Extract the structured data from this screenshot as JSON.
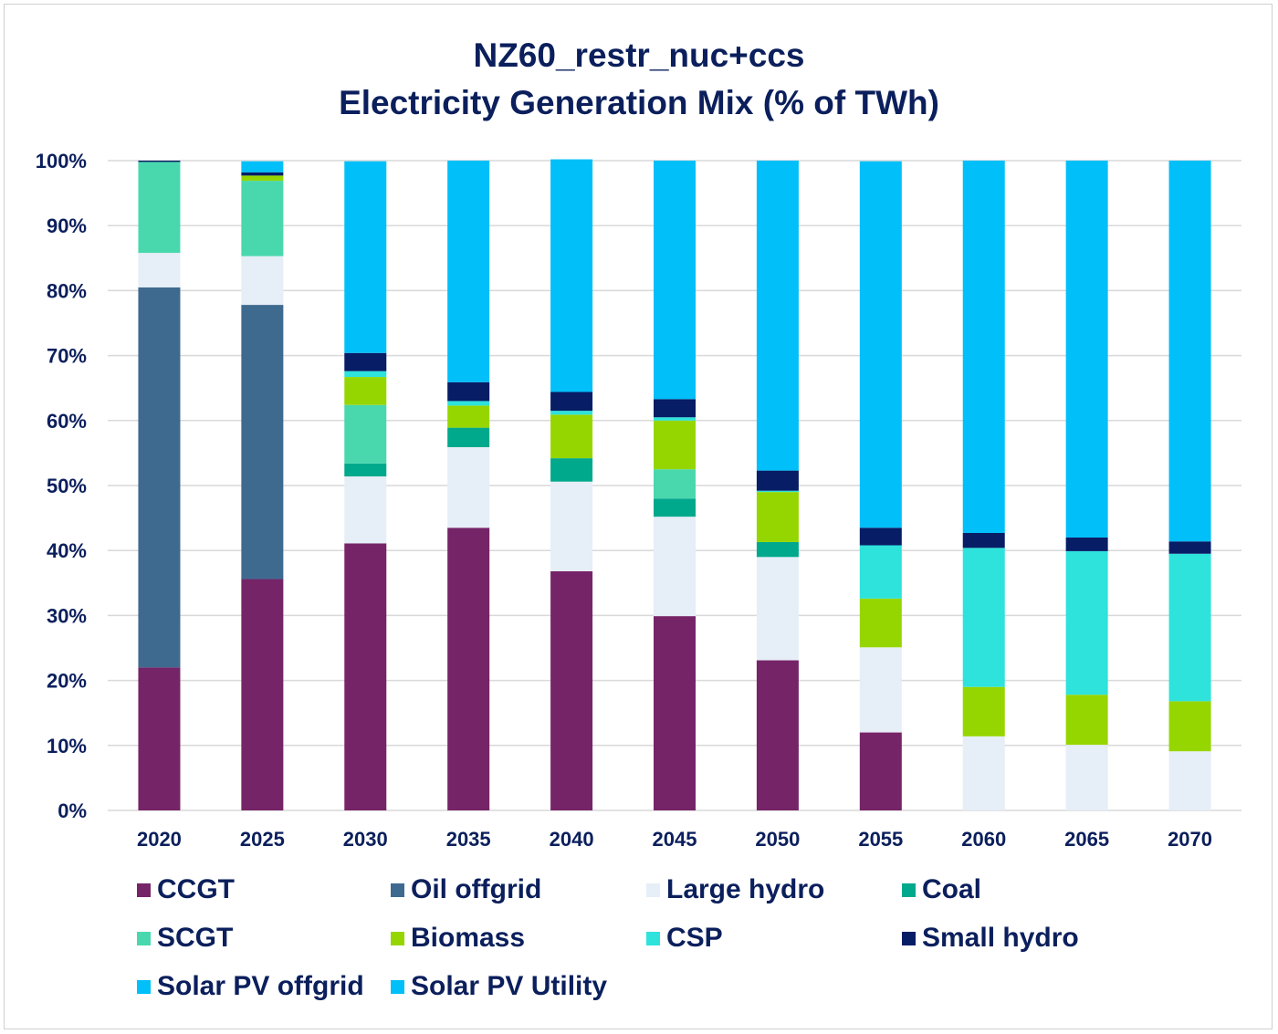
{
  "chart_data": {
    "type": "bar",
    "stacked": true,
    "title": [
      "NZ60_restr_nuc+ccs",
      "Electricity Generation Mix (% of TWh)"
    ],
    "xlabel": "",
    "ylabel": "",
    "ylim": [
      0,
      100
    ],
    "yticks": [
      "0%",
      "10%",
      "20%",
      "30%",
      "40%",
      "50%",
      "60%",
      "70%",
      "80%",
      "90%",
      "100%"
    ],
    "grid": true,
    "legend_position": "bottom",
    "categories": [
      "2020",
      "2025",
      "2030",
      "2035",
      "2040",
      "2045",
      "2050",
      "2055",
      "2060",
      "2065",
      "2070"
    ],
    "series": [
      {
        "name": "CCGT",
        "color": "#762468",
        "values": [
          22.0,
          35.6,
          41.1,
          43.5,
          36.8,
          29.9,
          23.1,
          12.0,
          0,
          0,
          0
        ]
      },
      {
        "name": "Oil offgrid",
        "color": "#3f6a8f",
        "values": [
          58.5,
          42.2,
          0,
          0,
          0,
          0,
          0,
          0,
          0,
          0,
          0
        ]
      },
      {
        "name": "Large hydro",
        "color": "#e6eef7",
        "values": [
          5.3,
          7.5,
          10.3,
          12.4,
          13.8,
          15.3,
          15.9,
          13.1,
          11.4,
          10.1,
          9.1
        ]
      },
      {
        "name": "Coal",
        "color": "#00a98c",
        "values": [
          0,
          0,
          2.0,
          3.0,
          3.6,
          2.8,
          2.3,
          0,
          0,
          0,
          0
        ]
      },
      {
        "name": "SCGT",
        "color": "#49d8ad",
        "values": [
          14.0,
          11.6,
          9.0,
          0,
          0,
          4.5,
          0,
          0,
          0,
          0,
          0
        ]
      },
      {
        "name": "Biomass",
        "color": "#96d600",
        "values": [
          0,
          0.8,
          4.3,
          3.4,
          6.7,
          7.5,
          7.7,
          7.5,
          7.6,
          7.7,
          7.7
        ]
      },
      {
        "name": "CSP",
        "color": "#2de3dc",
        "values": [
          0,
          0,
          0.9,
          0.7,
          0.6,
          0.5,
          0.2,
          8.2,
          21.4,
          22.1,
          22.7
        ]
      },
      {
        "name": "Small hydro",
        "color": "#071d66",
        "values": [
          0.2,
          0.5,
          2.8,
          2.9,
          2.9,
          2.8,
          3.1,
          2.7,
          2.3,
          2.1,
          1.9
        ]
      },
      {
        "name": "Solar PV offgrid",
        "color": "#00bff9",
        "values": [
          0,
          0,
          0,
          0,
          0,
          0,
          0,
          0,
          0,
          0,
          0
        ]
      },
      {
        "name": "Solar PV Utility",
        "color": "#00bff9",
        "values": [
          0,
          1.7,
          29.5,
          34.1,
          35.8,
          36.7,
          47.7,
          56.4,
          57.3,
          58.0,
          58.6
        ]
      }
    ]
  }
}
